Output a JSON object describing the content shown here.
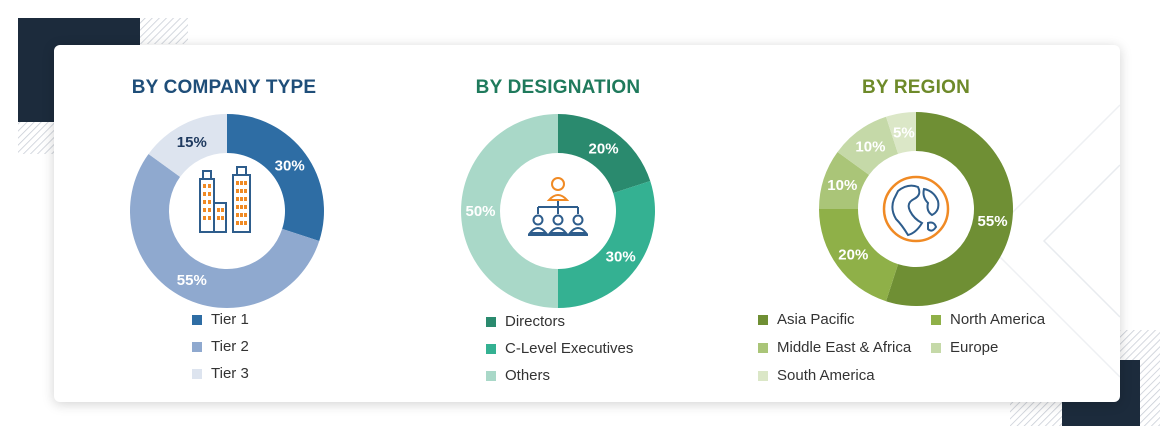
{
  "chart_data": [
    {
      "type": "pie",
      "title": "BY COMPANY TYPE",
      "title_color": "#1f4e79",
      "categories": [
        "Tier 1",
        "Tier 2",
        "Tier 3"
      ],
      "values": [
        30,
        55,
        15
      ],
      "labels": [
        "30%",
        "55%",
        "15%"
      ],
      "colors": [
        "#2e6da4",
        "#8fa9cf",
        "#dde4ef"
      ],
      "label_colors": [
        "#ffffff",
        "#ffffff",
        "#1f3a5f"
      ],
      "icon": "buildings-icon",
      "legend_position": "bottom"
    },
    {
      "type": "pie",
      "title": "BY DESIGNATION",
      "title_color": "#1f7a5c",
      "categories": [
        "Directors",
        "C-Level Executives",
        "Others"
      ],
      "values": [
        20,
        30,
        50
      ],
      "labels": [
        "20%",
        "30%",
        "50%"
      ],
      "colors": [
        "#2a8a6e",
        "#34b192",
        "#a9d8c8"
      ],
      "label_colors": [
        "#ffffff",
        "#ffffff",
        "#ffffff"
      ],
      "icon": "org-hierarchy-icon",
      "legend_position": "bottom"
    },
    {
      "type": "pie",
      "title": "BY REGION",
      "title_color": "#6e8a2a",
      "categories": [
        "Asia Pacific",
        "North America",
        "Middle East & Africa",
        "Europe",
        "South America"
      ],
      "values": [
        55,
        20,
        10,
        10,
        5
      ],
      "labels": [
        "55%",
        "20%",
        "10%",
        "10%",
        "5%"
      ],
      "colors": [
        "#6f8f34",
        "#8fb048",
        "#aac578",
        "#c5d9a8",
        "#dbe7c7"
      ],
      "label_colors": [
        "#ffffff",
        "#ffffff",
        "#ffffff",
        "#ffffff",
        "#ffffff"
      ],
      "icon": "globe-icon",
      "legend_position": "bottom"
    }
  ]
}
